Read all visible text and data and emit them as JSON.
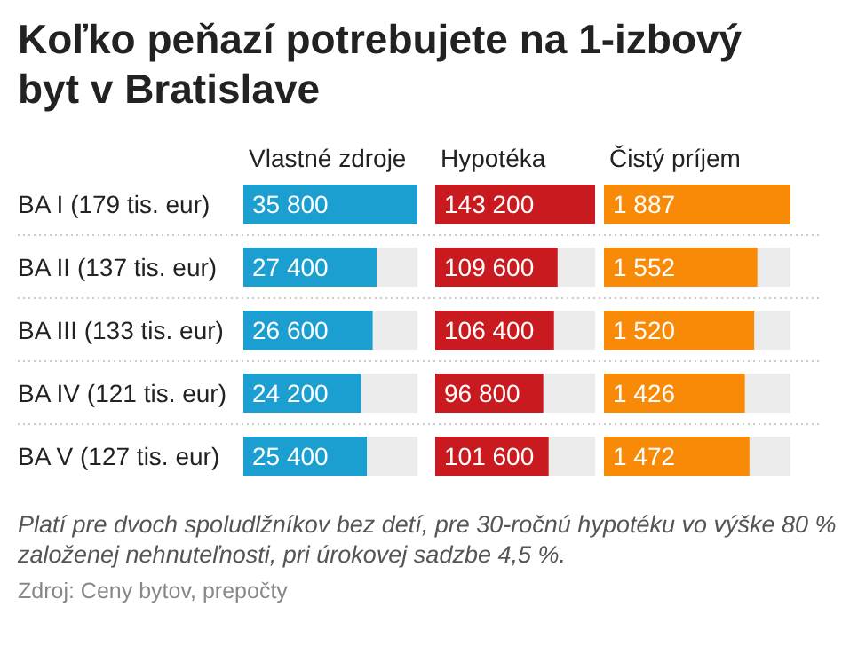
{
  "chart_data": [
    {
      "type": "bar",
      "orientation": "horizontal",
      "title": "Koľko peňazí potrebujete na 1-izbový byt v Bratislave",
      "xlabel": "Vlastné zdroje",
      "categories": [
        "BA I (179 tis. eur)",
        "BA II (137 tis. eur)",
        "BA III (133 tis. eur)",
        "BA IV (121 tis. eur)",
        "BA V (127 tis. eur)"
      ],
      "values": [
        35800,
        27400,
        26600,
        24200,
        25400
      ],
      "value_labels": [
        "35 800",
        "27 400",
        "26 600",
        "24 200",
        "25 400"
      ],
      "color": "#1b9fd1",
      "xlim": [
        0,
        35800
      ],
      "tick_labels": "y",
      "annotations": [
        "Platí pre dvoch spoludlžníkov bez detí, pre 30-ročnú hypotéku vo výške 80 % založenej nehnuteľnosti, pri úrokovej sadzbe 4,5 %.",
        "Zdroj: Ceny bytov, prepočty"
      ]
    },
    {
      "type": "bar",
      "orientation": "horizontal",
      "xlabel": "Hypotéka",
      "categories": [
        null,
        null,
        null,
        null,
        null
      ],
      "values": [
        143200,
        109600,
        106400,
        96800,
        101600
      ],
      "value_labels": [
        "143 200",
        "109 600",
        "106 400",
        "96 800",
        "101 600"
      ],
      "color": "#c81a1f",
      "xlim": [
        0,
        143200
      ],
      "tick_labels": false
    },
    {
      "type": "bar",
      "orientation": "horizontal",
      "xlabel": "Čistý príjem",
      "categories": [
        null,
        null,
        null,
        null,
        null
      ],
      "values": [
        1887,
        1552,
        1520,
        1426,
        1472
      ],
      "value_labels": [
        "1 887",
        "1 552",
        "1 520",
        "1 426",
        "1 472"
      ],
      "color": "#f98a07",
      "xlim": [
        0,
        1887
      ],
      "tick_labels": false
    }
  ]
}
